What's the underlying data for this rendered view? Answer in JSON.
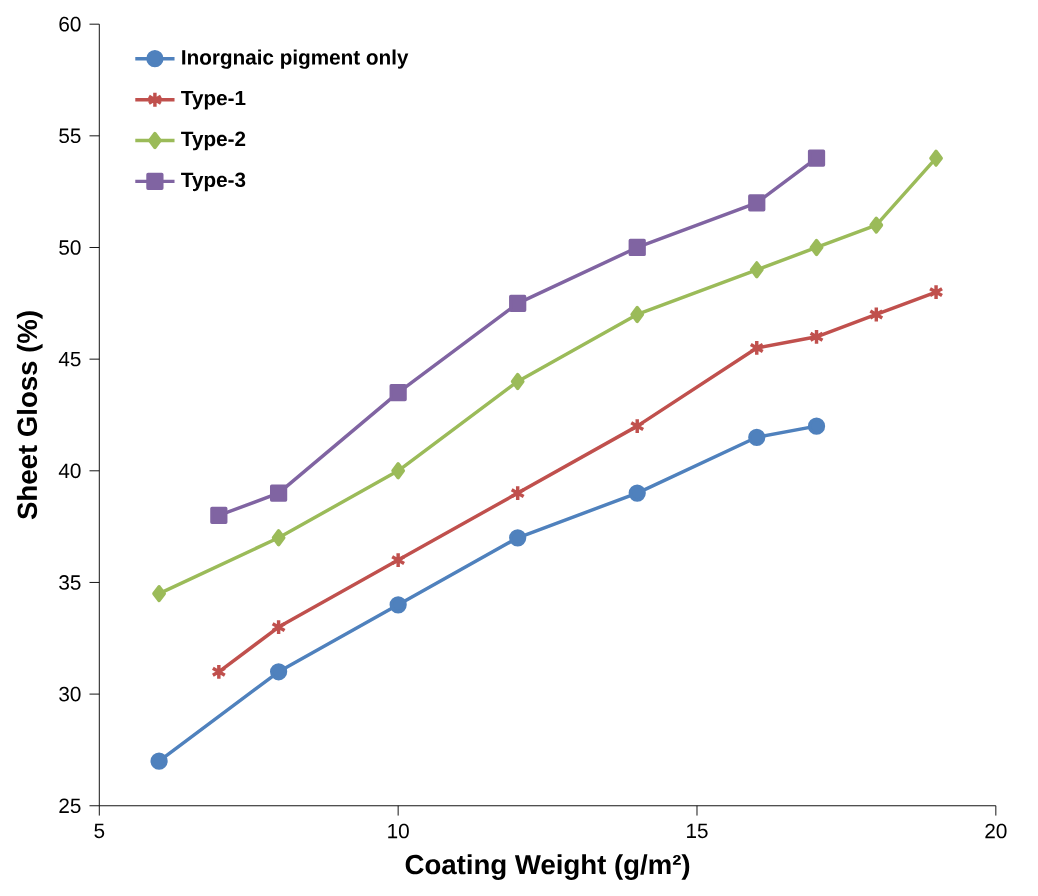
{
  "chart_data": {
    "type": "line",
    "xlabel": "Coating Weight (g/m²)",
    "ylabel": "Sheet Gloss (%)",
    "xlim": [
      5,
      20
    ],
    "ylim": [
      25,
      60
    ],
    "xticks": [
      5,
      10,
      15,
      20
    ],
    "yticks": [
      25,
      30,
      35,
      40,
      45,
      50,
      55,
      60
    ],
    "grid": false,
    "legend": "top left",
    "line_style": "solid",
    "series": [
      {
        "name": "Inorgnaic pigment only",
        "color": "#4f81bd",
        "marker": "circle",
        "x": [
          6,
          8,
          10,
          12,
          14,
          16,
          17
        ],
        "values": [
          27,
          31,
          34,
          37,
          39,
          41.5,
          42
        ]
      },
      {
        "name": "Type-1",
        "color": "#c0504d",
        "marker": "cross",
        "x": [
          7,
          8,
          10,
          12,
          14,
          16,
          17,
          18,
          19
        ],
        "values": [
          31,
          33,
          36,
          39,
          42,
          45.5,
          46,
          47,
          48
        ]
      },
      {
        "name": "Type-2",
        "color": "#9bbb59",
        "marker": "diamond",
        "x": [
          6,
          8,
          10,
          12,
          14,
          16,
          17,
          18,
          19
        ],
        "values": [
          34.5,
          37,
          40,
          44,
          47,
          49,
          50,
          51,
          54
        ]
      },
      {
        "name": "Type-3",
        "color": "#8064a2",
        "marker": "square",
        "x": [
          7,
          8,
          10,
          12,
          14,
          16,
          17
        ],
        "values": [
          38,
          39,
          43.5,
          47.5,
          50,
          52,
          54
        ]
      }
    ]
  }
}
